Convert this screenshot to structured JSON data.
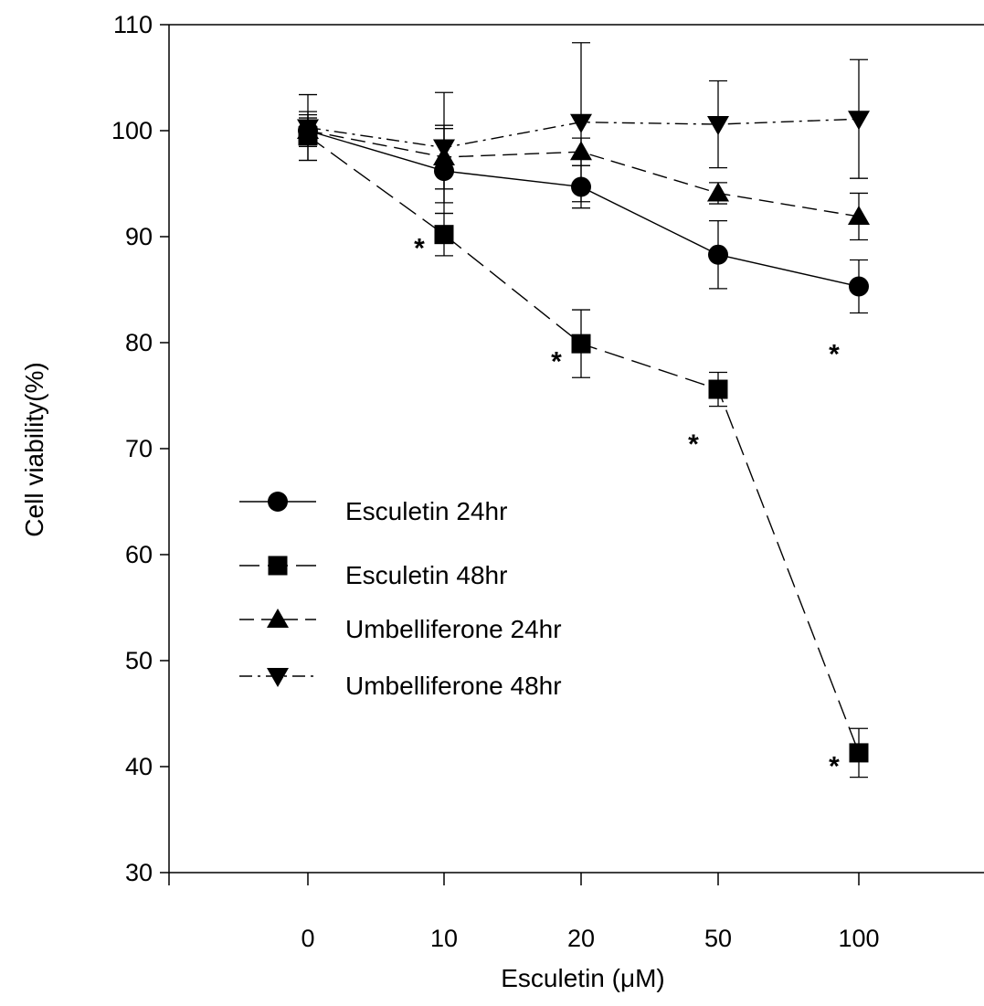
{
  "chart_data": {
    "type": "line",
    "xlabel": "Esculetin (μM)",
    "ylabel": "Cell viability(%)",
    "ylim": [
      30,
      110
    ],
    "yticks": [
      30,
      40,
      50,
      60,
      70,
      80,
      90,
      100,
      110
    ],
    "categories": [
      "0",
      "10",
      "20",
      "50",
      "100"
    ],
    "legend_position": "center-left",
    "grid": false,
    "series": [
      {
        "name": "Esculetin 24hr",
        "marker": "circle",
        "dash": "solid",
        "values": [
          100.0,
          96.2,
          94.7,
          88.3,
          85.3
        ],
        "errors": [
          1.5,
          4.0,
          2.0,
          3.2,
          2.5
        ]
      },
      {
        "name": "Esculetin 48hr",
        "marker": "square",
        "dash": "long-dash",
        "values": [
          99.5,
          90.2,
          79.9,
          75.6,
          41.3
        ],
        "errors": [
          2.3,
          2.0,
          3.2,
          1.6,
          2.3
        ]
      },
      {
        "name": "Umbelliferone 24hr",
        "marker": "triangle-up",
        "dash": "dash",
        "values": [
          100.0,
          97.5,
          98.0,
          94.1,
          91.9
        ],
        "errors": [
          1.2,
          3.0,
          1.3,
          1.0,
          2.2
        ]
      },
      {
        "name": "Umbelliferone 48hr",
        "marker": "triangle-down",
        "dash": "dash-dot",
        "values": [
          100.3,
          98.4,
          100.8,
          100.6,
          101.1
        ],
        "errors": [
          3.1,
          5.2,
          7.5,
          4.1,
          5.6
        ]
      }
    ],
    "annotations": [
      {
        "text": "*",
        "x": "10",
        "y": 89.2
      },
      {
        "text": "*",
        "x": "20",
        "y": 78.5
      },
      {
        "text": "*",
        "x": "50",
        "y": 70.7
      },
      {
        "text": "*",
        "x": "100",
        "y": 79.2
      },
      {
        "text": "*",
        "x": "100",
        "y": 40.3
      }
    ]
  }
}
